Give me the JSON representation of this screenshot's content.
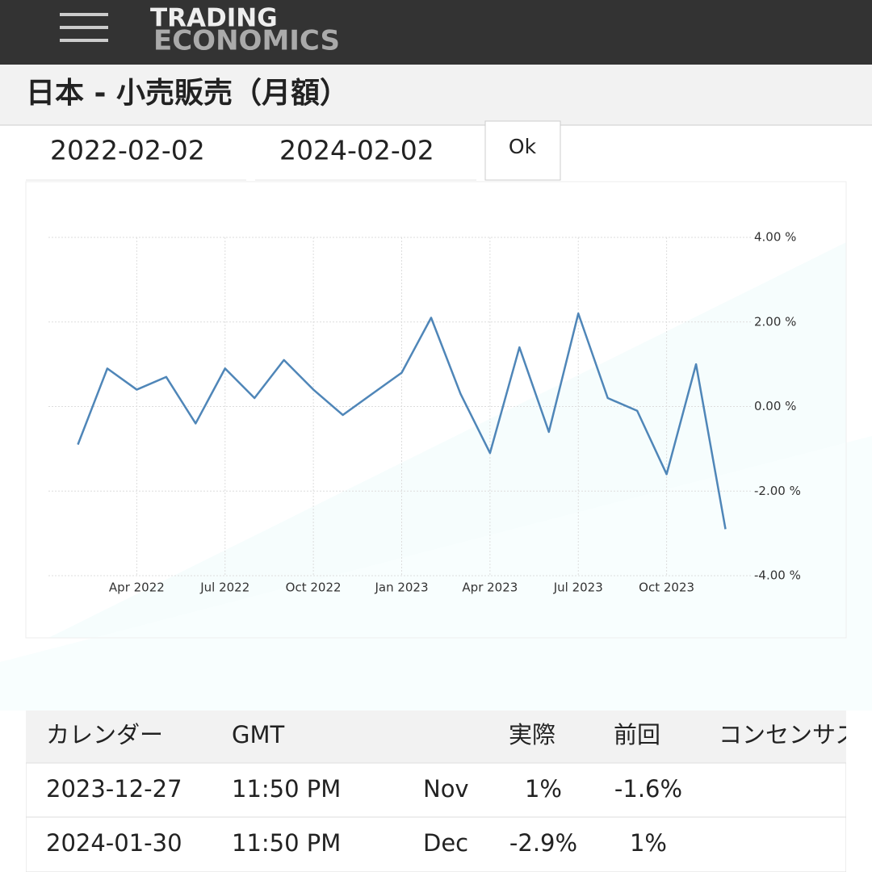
{
  "header": {
    "logo_top": "TRADING",
    "logo_bottom": "ECONOMICS",
    "title": "日本 - 小売販売（月額）"
  },
  "form": {
    "start": "2022-02-02",
    "end": "2024-02-02",
    "button": "Ok"
  },
  "chart_data": {
    "type": "line",
    "x": [
      "2022-02",
      "2022-03",
      "2022-04",
      "2022-05",
      "2022-06",
      "2022-07",
      "2022-08",
      "2022-09",
      "2022-10",
      "2022-11",
      "2022-12",
      "2023-01",
      "2023-02",
      "2023-03",
      "2023-04",
      "2023-05",
      "2023-06",
      "2023-07",
      "2023-08",
      "2023-09",
      "2023-10",
      "2023-11",
      "2023-12"
    ],
    "series": [
      {
        "color": "#4f86b8",
        "values": [
          -0.9,
          0.9,
          0.4,
          0.7,
          -0.4,
          0.9,
          0.2,
          1.1,
          0.4,
          -0.2,
          0.3,
          0.8,
          2.1,
          0.3,
          -1.1,
          1.4,
          -0.6,
          2.2,
          0.2,
          -0.1,
          -1.6,
          1.0,
          -2.9
        ]
      }
    ],
    "xlim": [
      "2022-01",
      "2024-01"
    ],
    "xticks": [
      {
        "value": "2022-04",
        "label": "Apr 2022"
      },
      {
        "value": "2022-07",
        "label": "Jul 2022"
      },
      {
        "value": "2022-10",
        "label": "Oct 2022"
      },
      {
        "value": "2023-01",
        "label": "Jan 2023"
      },
      {
        "value": "2023-04",
        "label": "Apr 2023"
      },
      {
        "value": "2023-07",
        "label": "Jul 2023"
      },
      {
        "value": "2023-10",
        "label": "Oct 2023"
      }
    ],
    "ylim": [
      -4,
      4
    ],
    "yticks": [
      {
        "value": 4,
        "label": "4.00 %"
      },
      {
        "value": 2,
        "label": "2.00 %"
      },
      {
        "value": 0,
        "label": "0.00 %"
      },
      {
        "value": -2,
        "label": "-2.00 %"
      },
      {
        "value": -4,
        "label": "-4.00 %"
      }
    ],
    "grid": true
  },
  "table": {
    "headers": [
      "カレンダー",
      "GMT",
      "実際",
      "前回",
      "コンセンサス"
    ],
    "rows": [
      [
        "2023-12-27",
        "11:50 PM",
        "Nov",
        "1%",
        "-1.6%"
      ],
      [
        "2024-01-30",
        "11:50 PM",
        "Dec",
        "-2.9%",
        "1%"
      ]
    ]
  }
}
